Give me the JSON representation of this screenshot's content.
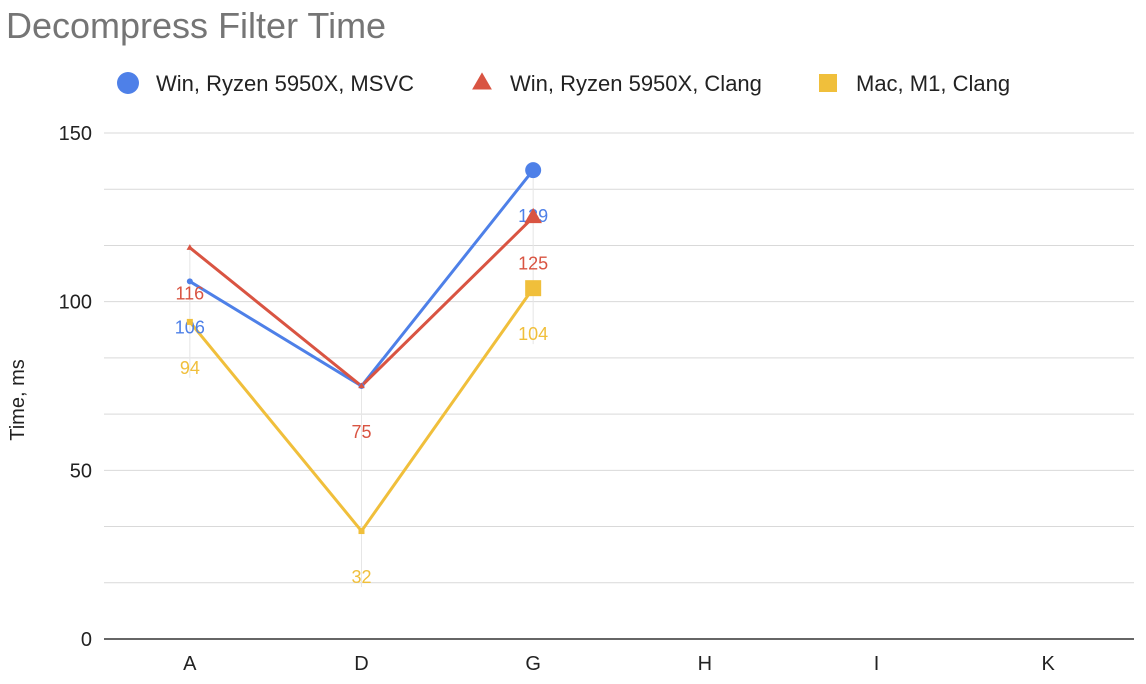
{
  "chart_data": {
    "type": "line",
    "title": "Decompress Filter Time",
    "ylabel": "Time, ms",
    "xlabel": "",
    "ylim": [
      0,
      150
    ],
    "yticks": [
      0,
      50,
      100,
      150
    ],
    "minor_gridlines": true,
    "categories": [
      "A",
      "D",
      "G",
      "H",
      "I",
      "K"
    ],
    "legend_position": "top",
    "series": [
      {
        "name": "Win, Ryzen 5950X, MSVC",
        "color": "#4e80e8",
        "marker": "circle",
        "values": [
          106,
          75,
          139,
          null,
          null,
          null
        ],
        "labels": [
          "106",
          "",
          "139",
          "",
          "",
          ""
        ]
      },
      {
        "name": "Win, Ryzen 5950X, Clang",
        "color": "#d95442",
        "marker": "triangle",
        "values": [
          116,
          75,
          125,
          null,
          null,
          null
        ],
        "labels": [
          "116",
          "75",
          "125",
          "",
          "",
          ""
        ]
      },
      {
        "name": "Mac, M1, Clang",
        "color": "#f0bf3b",
        "marker": "square",
        "values": [
          94,
          32,
          104,
          null,
          null,
          null
        ],
        "labels": [
          "94",
          "32",
          "104",
          "",
          "",
          ""
        ]
      }
    ]
  }
}
